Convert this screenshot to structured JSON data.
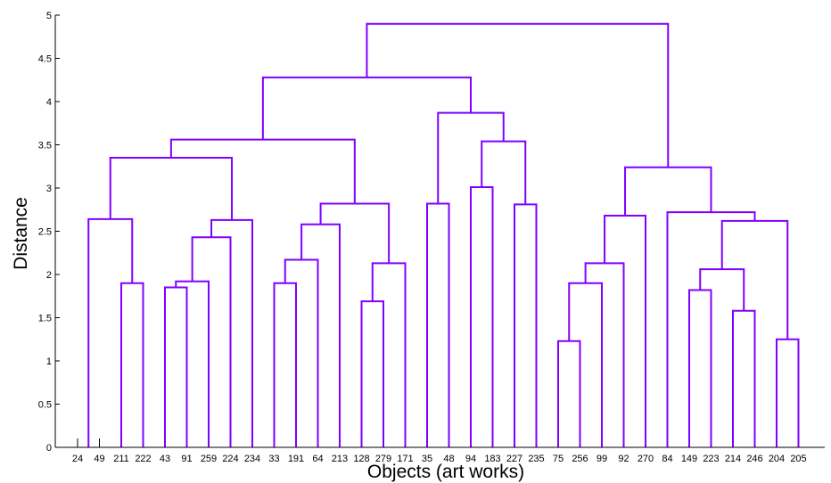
{
  "chart_data": {
    "type": "dendrogram",
    "xlabel": "Objects (art works)",
    "ylabel": "Distance",
    "ylim": [
      0,
      5
    ],
    "yticks": [
      "0",
      "0.5",
      "1",
      "1.5",
      "2",
      "2.5",
      "3",
      "3.5",
      "4",
      "4.5",
      "5"
    ],
    "leaves": [
      "24",
      "49",
      "211",
      "222",
      "43",
      "91",
      "259",
      "224",
      "234",
      "33",
      "191",
      "64",
      "213",
      "128",
      "279",
      "171",
      "35",
      "48",
      "94",
      "183",
      "227",
      "235",
      "75",
      "256",
      "99",
      "92",
      "270",
      "84",
      "149",
      "223",
      "214",
      "246",
      "204",
      "205"
    ],
    "link_color": "#8000ff",
    "axis_color": "#000000",
    "merges": [
      [
        0,
        1,
        0.0
      ],
      [
        2,
        3,
        1.9
      ],
      [
        4,
        5,
        1.85
      ],
      [
        36,
        6,
        1.92
      ],
      [
        37,
        7,
        2.43
      ],
      [
        38,
        8,
        2.63
      ],
      [
        34,
        35,
        2.64
      ],
      [
        40,
        39,
        3.35
      ],
      [
        9,
        10,
        1.9
      ],
      [
        42,
        11,
        2.17
      ],
      [
        43,
        12,
        2.58
      ],
      [
        13,
        14,
        1.69
      ],
      [
        45,
        15,
        2.13
      ],
      [
        44,
        46,
        2.82
      ],
      [
        41,
        47,
        3.56
      ],
      [
        18,
        19,
        3.01
      ],
      [
        20,
        21,
        2.81
      ],
      [
        49,
        50,
        3.54
      ],
      [
        16,
        17,
        2.82
      ],
      [
        52,
        51,
        3.87
      ],
      [
        48,
        53,
        4.28
      ],
      [
        22,
        23,
        1.23
      ],
      [
        55,
        24,
        1.9
      ],
      [
        56,
        25,
        2.13
      ],
      [
        57,
        26,
        2.68
      ],
      [
        28,
        29,
        1.82
      ],
      [
        30,
        31,
        1.58
      ],
      [
        59,
        60,
        2.06
      ],
      [
        32,
        33,
        1.25
      ],
      [
        61,
        62,
        2.62
      ],
      [
        27,
        63,
        2.72
      ],
      [
        58,
        64,
        3.24
      ],
      [
        54,
        65,
        4.9
      ]
    ]
  }
}
